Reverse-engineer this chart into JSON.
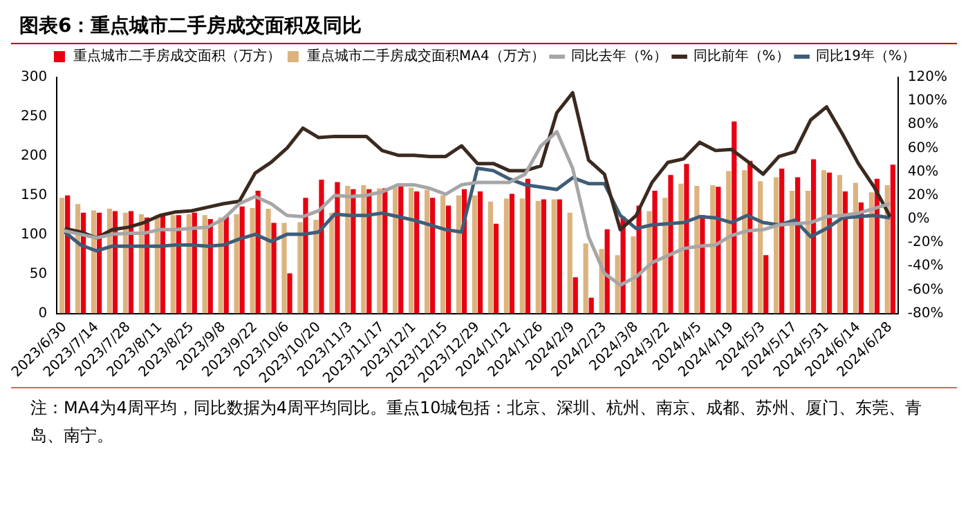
{
  "chart_data": {
    "type": "bar",
    "title": "图表6：重点城市二手房成交面积及同比",
    "categories": [
      "2023/6/30",
      null,
      "2023/7/14",
      null,
      "2023/7/28",
      null,
      "2023/8/11",
      null,
      "2023/8/25",
      null,
      "2023/9/8",
      null,
      "2023/9/22",
      null,
      "2023/10/6",
      null,
      "2023/10/20",
      null,
      "2023/11/3",
      null,
      "2023/11/17",
      null,
      "2023/12/1",
      null,
      "2023/12/15",
      null,
      "2023/12/29",
      null,
      "2024/1/12",
      null,
      "2024/1/26",
      null,
      "2024/2/9",
      null,
      "2024/2/23",
      null,
      "2024/3/8",
      null,
      "2024/3/22",
      null,
      "2024/4/5",
      null,
      "2024/4/19",
      null,
      "2024/5/3",
      null,
      "2024/5/17",
      null,
      "2024/5/31",
      null,
      "2024/6/14",
      null,
      "2024/6/28"
    ],
    "series": [
      {
        "name": "重点城市二手房成交面积（万方）",
        "color": "#e60012",
        "values": [
          150,
          128,
          128,
          130,
          130,
          122,
          125,
          125,
          128,
          120,
          124,
          136,
          156,
          115,
          51,
          147,
          170,
          167,
          158,
          158,
          159,
          162,
          155,
          147,
          137,
          158,
          155,
          114,
          152,
          171,
          145,
          145,
          46,
          20,
          107,
          123,
          137,
          156,
          176,
          190,
          125,
          161,
          244,
          194,
          74,
          184,
          173,
          196,
          179,
          155,
          141,
          171,
          189
        ]
      },
      {
        "name": "重点城市二手房成交面积MA4（万方）",
        "color": "#dcb37f",
        "values": [
          147,
          139,
          131,
          133,
          128,
          126,
          125,
          125,
          126,
          125,
          122,
          126,
          134,
          133,
          115,
          116,
          119,
          128,
          162,
          163,
          159,
          160,
          160,
          157,
          150,
          150,
          150,
          142,
          146,
          146,
          143,
          145,
          128,
          89,
          82,
          74,
          98,
          130,
          147,
          165,
          162,
          163,
          181,
          182,
          168,
          173,
          156,
          156,
          182,
          176,
          166,
          154,
          163
        ]
      },
      {
        "name": "同比去年（%）",
        "type": "line",
        "axis": "y2",
        "color": "#a6a6a6",
        "values": [
          -10,
          -13,
          -16,
          -13,
          -12,
          -12,
          -9,
          -9,
          -8,
          -7,
          0,
          13,
          19,
          13,
          3,
          2,
          7,
          20,
          19,
          20,
          23,
          29,
          29,
          26,
          21,
          29,
          31,
          31,
          31,
          38,
          62,
          74,
          43,
          -15,
          -46,
          -56,
          -49,
          -37,
          -31,
          -25,
          -23,
          -22,
          -14,
          -10,
          -9,
          -5,
          -4,
          -3,
          2,
          3,
          5,
          9,
          13
        ]
      },
      {
        "name": "同比前年（%）",
        "type": "line",
        "axis": "y2",
        "color": "#3b2a20",
        "values": [
          -8,
          -11,
          -16,
          -9,
          -7,
          -3,
          3,
          6,
          7,
          10,
          13,
          15,
          39,
          48,
          60,
          77,
          69,
          70,
          70,
          70,
          58,
          54,
          54,
          53,
          53,
          62,
          47,
          47,
          41,
          41,
          45,
          90,
          107,
          50,
          38,
          -9,
          3,
          31,
          48,
          51,
          65,
          58,
          59,
          49,
          38,
          53,
          57,
          84,
          95,
          72,
          47,
          27,
          2
        ]
      },
      {
        "name": "同比19年（%）",
        "type": "line",
        "axis": "y2",
        "color": "#3e5d78",
        "values": [
          -11,
          -22,
          -27,
          -23,
          -23,
          -23,
          -23,
          -22,
          -22,
          -23,
          -22,
          -17,
          -13,
          -19,
          -13,
          -13,
          -11,
          4,
          3,
          3,
          5,
          2,
          -1,
          -5,
          -9,
          -11,
          43,
          41,
          34,
          29,
          27,
          25,
          35,
          30,
          30,
          3,
          -8,
          -5,
          -4,
          -3,
          2,
          1,
          -3,
          3,
          -3,
          -5,
          -1,
          -15,
          -8,
          1,
          2,
          3,
          1
        ]
      }
    ],
    "ylim": [
      0,
      300
    ],
    "yticks": [
      0,
      50,
      100,
      150,
      200,
      250,
      300
    ],
    "y2lim": [
      -80,
      120
    ],
    "y2ticks": [
      {
        "value": -80,
        "label": "-80%"
      },
      {
        "value": -60,
        "label": "-60%"
      },
      {
        "value": -40,
        "label": "-40%"
      },
      {
        "value": -20,
        "label": "-20%"
      },
      {
        "value": 0,
        "label": "0%"
      },
      {
        "value": 20,
        "label": "20%"
      },
      {
        "value": 40,
        "label": "40%"
      },
      {
        "value": 60,
        "label": "60%"
      },
      {
        "value": 80,
        "label": "80%"
      },
      {
        "value": 100,
        "label": "100%"
      },
      {
        "value": 120,
        "label": "120%"
      }
    ],
    "legend": "top",
    "grid": false,
    "marker": "none",
    "line_style": "solid",
    "annotations": [
      "注：MA4为4周平均，同比数据为4周平均同比。重点10城包括：北京、深圳、杭州、南京、成都、苏州、厦门、东莞、青岛、南宁。"
    ]
  }
}
